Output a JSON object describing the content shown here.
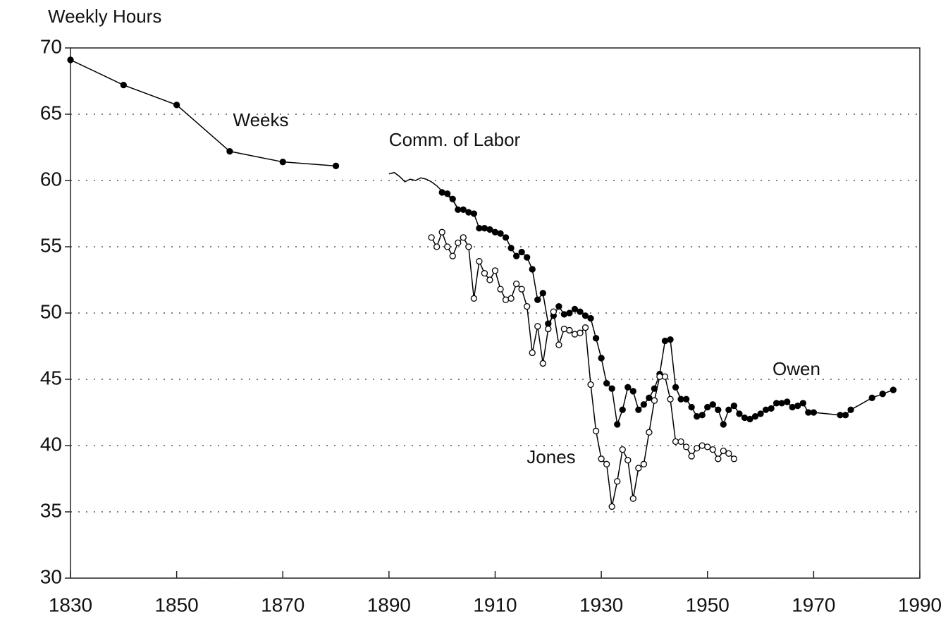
{
  "chart_data": {
    "type": "line",
    "ylabel": "Weekly Hours",
    "xlim": [
      1830,
      1990
    ],
    "xticks": [
      1830,
      1850,
      1870,
      1890,
      1910,
      1930,
      1950,
      1970,
      1990
    ],
    "ylim": [
      30,
      70
    ],
    "yticks": [
      30,
      35,
      40,
      45,
      50,
      55,
      60,
      65,
      70
    ],
    "grid": true,
    "series": [
      {
        "name": "Weeks",
        "color": "#000000",
        "marker": "filled",
        "x": [
          1830,
          1840,
          1850,
          1860,
          1870,
          1880
        ],
        "values": [
          69.1,
          67.2,
          65.7,
          62.2,
          61.4,
          61.1
        ]
      },
      {
        "name": "Comm. of Labor",
        "color": "#000000",
        "marker": "none",
        "x": [
          1890,
          1891,
          1892,
          1893,
          1894,
          1895,
          1896,
          1897,
          1898,
          1899,
          1900,
          1901,
          1902,
          1903
        ],
        "values": [
          60.5,
          60.6,
          60.3,
          59.9,
          60.1,
          60.0,
          60.2,
          60.1,
          59.9,
          59.6,
          59.2,
          58.9,
          58.5,
          57.9
        ]
      },
      {
        "name": "Owen",
        "color": "#000000",
        "marker": "filled",
        "x": [
          1900,
          1901,
          1902,
          1903,
          1904,
          1905,
          1906,
          1907,
          1908,
          1909,
          1910,
          1911,
          1912,
          1913,
          1914,
          1915,
          1916,
          1917,
          1918,
          1919,
          1920,
          1921,
          1922,
          1923,
          1924,
          1925,
          1926,
          1927,
          1928,
          1929,
          1930,
          1931,
          1932,
          1933,
          1934,
          1935,
          1936,
          1937,
          1938,
          1939,
          1940,
          1941,
          1942,
          1943,
          1944,
          1945,
          1946,
          1947,
          1948,
          1949,
          1950,
          1951,
          1952,
          1953,
          1954,
          1955,
          1956,
          1957,
          1958,
          1959,
          1960,
          1961,
          1962,
          1963,
          1964,
          1965,
          1966,
          1967,
          1968,
          1969,
          1970,
          1975,
          1976,
          1977,
          1981,
          1983,
          1985
        ],
        "values": [
          59.1,
          59.0,
          58.6,
          57.8,
          57.8,
          57.6,
          57.5,
          56.4,
          56.4,
          56.3,
          56.1,
          56.0,
          55.7,
          54.9,
          54.3,
          54.6,
          54.2,
          53.3,
          51.0,
          51.5,
          49.2,
          49.8,
          50.5,
          49.9,
          50.0,
          50.3,
          50.1,
          49.8,
          49.6,
          48.1,
          46.6,
          44.7,
          44.3,
          41.6,
          42.7,
          44.4,
          44.1,
          42.7,
          43.1,
          43.6,
          44.3,
          45.4,
          47.9,
          48.0,
          44.4,
          43.5,
          43.5,
          42.9,
          42.2,
          42.3,
          42.9,
          43.1,
          42.7,
          41.6,
          42.7,
          43.0,
          42.4,
          42.1,
          42.0,
          42.2,
          42.4,
          42.7,
          42.8,
          43.2,
          43.2,
          43.3,
          42.9,
          43.0,
          43.2,
          42.5,
          42.5,
          42.3,
          42.3,
          42.7,
          43.6,
          43.9,
          44.2
        ]
      },
      {
        "name": "Jones",
        "color": "#000000",
        "marker": "open",
        "x": [
          1898,
          1899,
          1900,
          1901,
          1902,
          1903,
          1904,
          1905,
          1906,
          1907,
          1908,
          1909,
          1910,
          1911,
          1912,
          1913,
          1914,
          1915,
          1916,
          1917,
          1918,
          1919,
          1920,
          1921,
          1922,
          1923,
          1924,
          1925,
          1926,
          1927,
          1928,
          1929,
          1930,
          1931,
          1932,
          1933,
          1934,
          1935,
          1936,
          1937,
          1938,
          1939,
          1940,
          1941,
          1942,
          1943,
          1944,
          1945,
          1946,
          1947,
          1948,
          1949,
          1950,
          1951,
          1952,
          1953,
          1954,
          1955
        ],
        "values": [
          55.7,
          55.0,
          56.1,
          55.0,
          54.3,
          55.3,
          55.7,
          55.0,
          51.1,
          53.9,
          53.0,
          52.5,
          53.2,
          51.8,
          51.0,
          51.1,
          52.2,
          51.8,
          50.5,
          47.0,
          49.0,
          46.2,
          48.8,
          50.1,
          47.6,
          48.8,
          48.7,
          48.4,
          48.5,
          48.9,
          44.6,
          41.1,
          39.0,
          38.6,
          35.4,
          37.3,
          39.7,
          38.9,
          36.0,
          38.3,
          38.6,
          41.0,
          43.4,
          45.2,
          45.2,
          43.5,
          40.3,
          40.3,
          39.9,
          39.2,
          39.8,
          40.0,
          39.9,
          39.7,
          39.0,
          39.6,
          39.4,
          39.0
        ]
      }
    ]
  }
}
